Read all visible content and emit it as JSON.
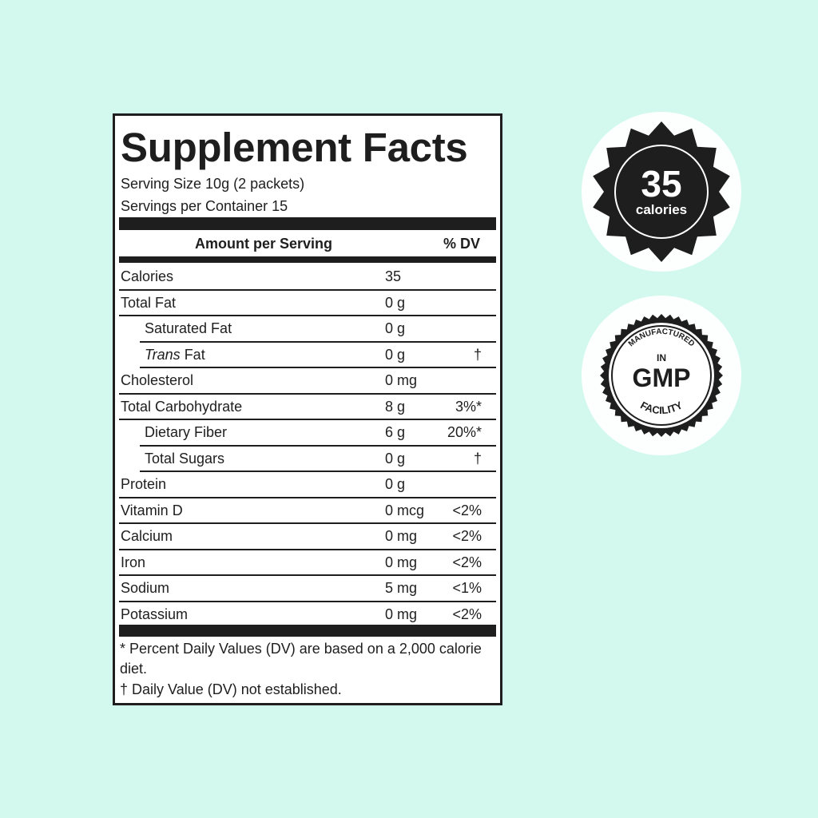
{
  "label": {
    "title": "Supplement Facts",
    "serving_size": "Serving Size 10g (2 packets)",
    "servings_per_container": "Servings per Container 15",
    "header_amount": "Amount per Serving",
    "header_dv": "% DV",
    "rows": [
      {
        "name": "Calories",
        "amount": "35",
        "dv": "",
        "indent": false
      },
      {
        "name": "Total Fat",
        "amount": "0 g",
        "dv": "",
        "indent": false
      },
      {
        "name": "Saturated Fat",
        "amount": "0 g",
        "dv": "",
        "indent": true
      },
      {
        "name": "Trans",
        "name_suffix": " Fat",
        "amount": "0 g",
        "dv": "†",
        "indent": true
      },
      {
        "name": "Cholesterol",
        "amount": "0 mg",
        "dv": "",
        "indent": false
      },
      {
        "name": "Total Carbohydrate",
        "amount": "8 g",
        "dv": "3%*",
        "indent": false
      },
      {
        "name": "Dietary Fiber",
        "amount": "6 g",
        "dv": "20%*",
        "indent": true
      },
      {
        "name": "Total Sugars",
        "amount": "0 g",
        "dv": "†",
        "indent": true
      },
      {
        "name": "Protein",
        "amount": "0 g",
        "dv": "",
        "indent": false
      },
      {
        "name": "Vitamin D",
        "amount": "0 mcg",
        "dv": "<2%",
        "indent": false
      },
      {
        "name": "Calcium",
        "amount": "0 mg",
        "dv": "<2%",
        "indent": false
      },
      {
        "name": "Iron",
        "amount": "0 mg",
        "dv": "<2%",
        "indent": false
      },
      {
        "name": "Sodium",
        "amount": "5 mg",
        "dv": "<1%",
        "indent": false
      },
      {
        "name": "Potassium",
        "amount": "0 mg",
        "dv": "<2%",
        "indent": false
      }
    ],
    "footnote_1": "* Percent Daily Values (DV) are based on a 2,000 calorie diet.",
    "footnote_2": "† Daily Value (DV) not established."
  },
  "badges": {
    "calories": {
      "number": "35",
      "unit": "calories"
    },
    "gmp": {
      "top": "MANUFACTURED",
      "middle": "IN",
      "main": "GMP",
      "bottom": "FACILITY"
    }
  },
  "colors": {
    "background": "#d3f9ee",
    "ink": "#1e1e1e"
  }
}
